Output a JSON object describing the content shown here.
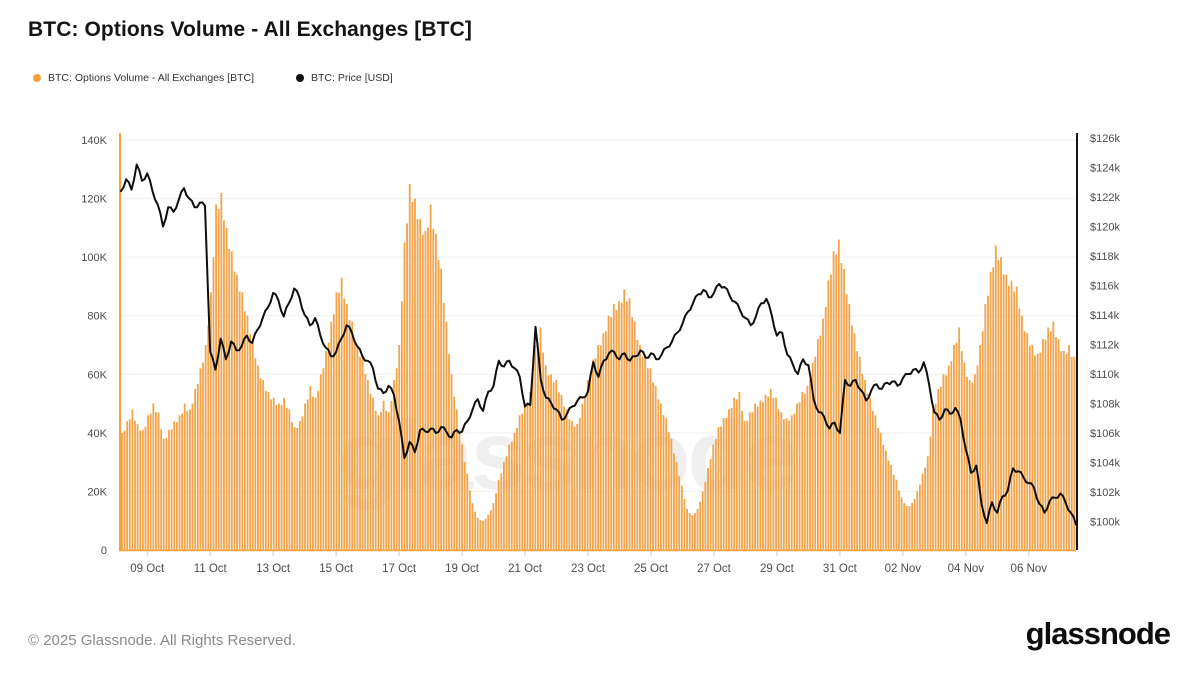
{
  "header": {
    "title": "BTC: Options Volume - All Exchanges [BTC]",
    "legend": [
      {
        "label": "BTC: Options Volume - All Exchanges [BTC]",
        "color": "#f7a139",
        "series_type": "bar"
      },
      {
        "label": "BTC: Price [USD]",
        "color": "#111111",
        "series_type": "line"
      }
    ]
  },
  "watermark": "glassnode",
  "footer": {
    "copyright": "© 2025 Glassnode. All Rights Reserved.",
    "logo": "glassnode"
  },
  "chart_data": {
    "type": "bar",
    "combo": "bar volume (left axis) + line price (right axis)",
    "title": "BTC: Options Volume - All Exchanges [BTC]",
    "grid": "horizontal-only",
    "legend_position": "top-left",
    "x_axis": {
      "start": "08 Oct ~04:00",
      "end": "07 Nov ~12:00",
      "step_hours": 4,
      "tick_labels": [
        "09 Oct",
        "11 Oct",
        "13 Oct",
        "15 Oct",
        "17 Oct",
        "19 Oct",
        "21 Oct",
        "23 Oct",
        "25 Oct",
        "27 Oct",
        "29 Oct",
        "31 Oct",
        "02 Nov",
        "04 Nov",
        "06 Nov"
      ],
      "tick_indices": [
        5,
        17,
        29,
        41,
        53,
        65,
        77,
        89,
        101,
        113,
        125,
        137,
        149,
        161,
        173
      ]
    },
    "y_left": {
      "series": "Options Volume [BTC]",
      "ticks": [
        "0",
        "20K",
        "40K",
        "60K",
        "80K",
        "100K",
        "120K",
        "140K"
      ],
      "tick_values_k": [
        0,
        20,
        40,
        60,
        80,
        100,
        120,
        140
      ],
      "range_k": [
        0,
        140
      ]
    },
    "y_right": {
      "series": "BTC Price [USD]",
      "ticks": [
        "$100k",
        "$102k",
        "$104k",
        "$106k",
        "$108k",
        "$110k",
        "$112k",
        "$114k",
        "$116k",
        "$118k",
        "$120k",
        "$122k",
        "$124k",
        "$126k"
      ],
      "tick_values_usd_k": [
        100,
        102,
        104,
        106,
        108,
        110,
        112,
        114,
        116,
        118,
        120,
        122,
        124,
        126
      ],
      "range_top_usd_k": 126
    },
    "series": [
      {
        "name": "BTC: Options Volume - All Exchanges [BTC]",
        "type": "bar",
        "color": "#f3a44b",
        "unit": "thousand BTC",
        "values_k": [
          40,
          44,
          48,
          43,
          41,
          46,
          50,
          47,
          38,
          41,
          44,
          46,
          50,
          48,
          55,
          62,
          70,
          88,
          118,
          122,
          110,
          102,
          94,
          88,
          80,
          72,
          63,
          58,
          54,
          52,
          50,
          52,
          48,
          42,
          44,
          50,
          56,
          52,
          60,
          68,
          78,
          88,
          93,
          84,
          78,
          70,
          66,
          58,
          52,
          46,
          51,
          47,
          58,
          70,
          105,
          125,
          120,
          113,
          109,
          118,
          108,
          96,
          78,
          60,
          48,
          36,
          26,
          16,
          11,
          10,
          12,
          16,
          24,
          30,
          36,
          40,
          46,
          50,
          54,
          70,
          76,
          63,
          60,
          58,
          53,
          48,
          44,
          43,
          50,
          58,
          65,
          70,
          74,
          80,
          84,
          85,
          89,
          86,
          78,
          70,
          66,
          62,
          56,
          50,
          45,
          38,
          30,
          22,
          14,
          12,
          14,
          20,
          28,
          36,
          42,
          45,
          48,
          52,
          54,
          44,
          47,
          50,
          51,
          53,
          55,
          52,
          47,
          45,
          46,
          50,
          54,
          56,
          64,
          72,
          79,
          92,
          102,
          106,
          96,
          84,
          74,
          66,
          58,
          52,
          46,
          40,
          34,
          29,
          24,
          18,
          15,
          16,
          20,
          26,
          32,
          48,
          55,
          60,
          63,
          70,
          76,
          64,
          58,
          60,
          70,
          84,
          95,
          104,
          100,
          94,
          92,
          90,
          80,
          74,
          70,
          67,
          72,
          76,
          78,
          72,
          68,
          70,
          66
        ]
      },
      {
        "name": "BTC: Price [USD]",
        "type": "line",
        "color": "#0f0f0f",
        "unit": "thousand USD",
        "values_usd_k": [
          122.4,
          123.2,
          122.5,
          124.2,
          123.1,
          123.6,
          122.4,
          121.5,
          120.0,
          121.3,
          121.0,
          121.8,
          122.6,
          121.9,
          121.3,
          121.6,
          121.4,
          111.5,
          110.3,
          112.4,
          111.0,
          112.2,
          111.6,
          111.9,
          112.6,
          112.1,
          113.0,
          113.8,
          114.5,
          115.5,
          115.0,
          113.9,
          114.8,
          115.8,
          115.2,
          114.0,
          113.3,
          113.8,
          112.6,
          111.8,
          111.2,
          111.5,
          112.4,
          113.3,
          112.8,
          111.9,
          111.2,
          110.9,
          110.4,
          109.0,
          108.7,
          109.2,
          108.6,
          106.8,
          104.3,
          105.4,
          104.7,
          106.2,
          106.1,
          106.3,
          106.0,
          106.4,
          106.1,
          105.7,
          106.2,
          106.1,
          106.8,
          107.6,
          108.3,
          107.5,
          108.8,
          109.2,
          110.9,
          110.5,
          110.9,
          110.4,
          109.8,
          107.8,
          107.9,
          113.2,
          109.6,
          108.4,
          108.0,
          107.6,
          106.9,
          107.3,
          107.8,
          108.2,
          108.4,
          108.8,
          110.8,
          109.8,
          110.9,
          111.4,
          111.5,
          111.0,
          111.4,
          110.9,
          111.2,
          111.6,
          111.1,
          111.4,
          111.0,
          111.3,
          111.8,
          112.2,
          112.8,
          113.4,
          114.2,
          114.8,
          115.4,
          115.7,
          115.2,
          115.5,
          116.1,
          115.9,
          115.3,
          114.9,
          114.3,
          113.8,
          113.3,
          113.9,
          114.8,
          115.1,
          114.0,
          112.6,
          112.8,
          111.3,
          110.7,
          110.0,
          111.0,
          110.6,
          108.3,
          107.4,
          107.1,
          106.3,
          106.7,
          106.0,
          109.6,
          109.2,
          109.6,
          108.9,
          108.2,
          108.9,
          109.3,
          109.0,
          109.4,
          109.5,
          109.2,
          109.7,
          110.0,
          110.3,
          110.1,
          110.8,
          109.3,
          107.4,
          106.9,
          107.6,
          107.3,
          107.7,
          106.9,
          104.9,
          103.3,
          103.8,
          101.2,
          99.9,
          101.3,
          100.6,
          101.7,
          102.1,
          103.6,
          103.4,
          103.0,
          102.6,
          102.3,
          101.2,
          100.6,
          101.4,
          101.6,
          101.9,
          101.3,
          100.6,
          99.8
        ]
      }
    ]
  }
}
